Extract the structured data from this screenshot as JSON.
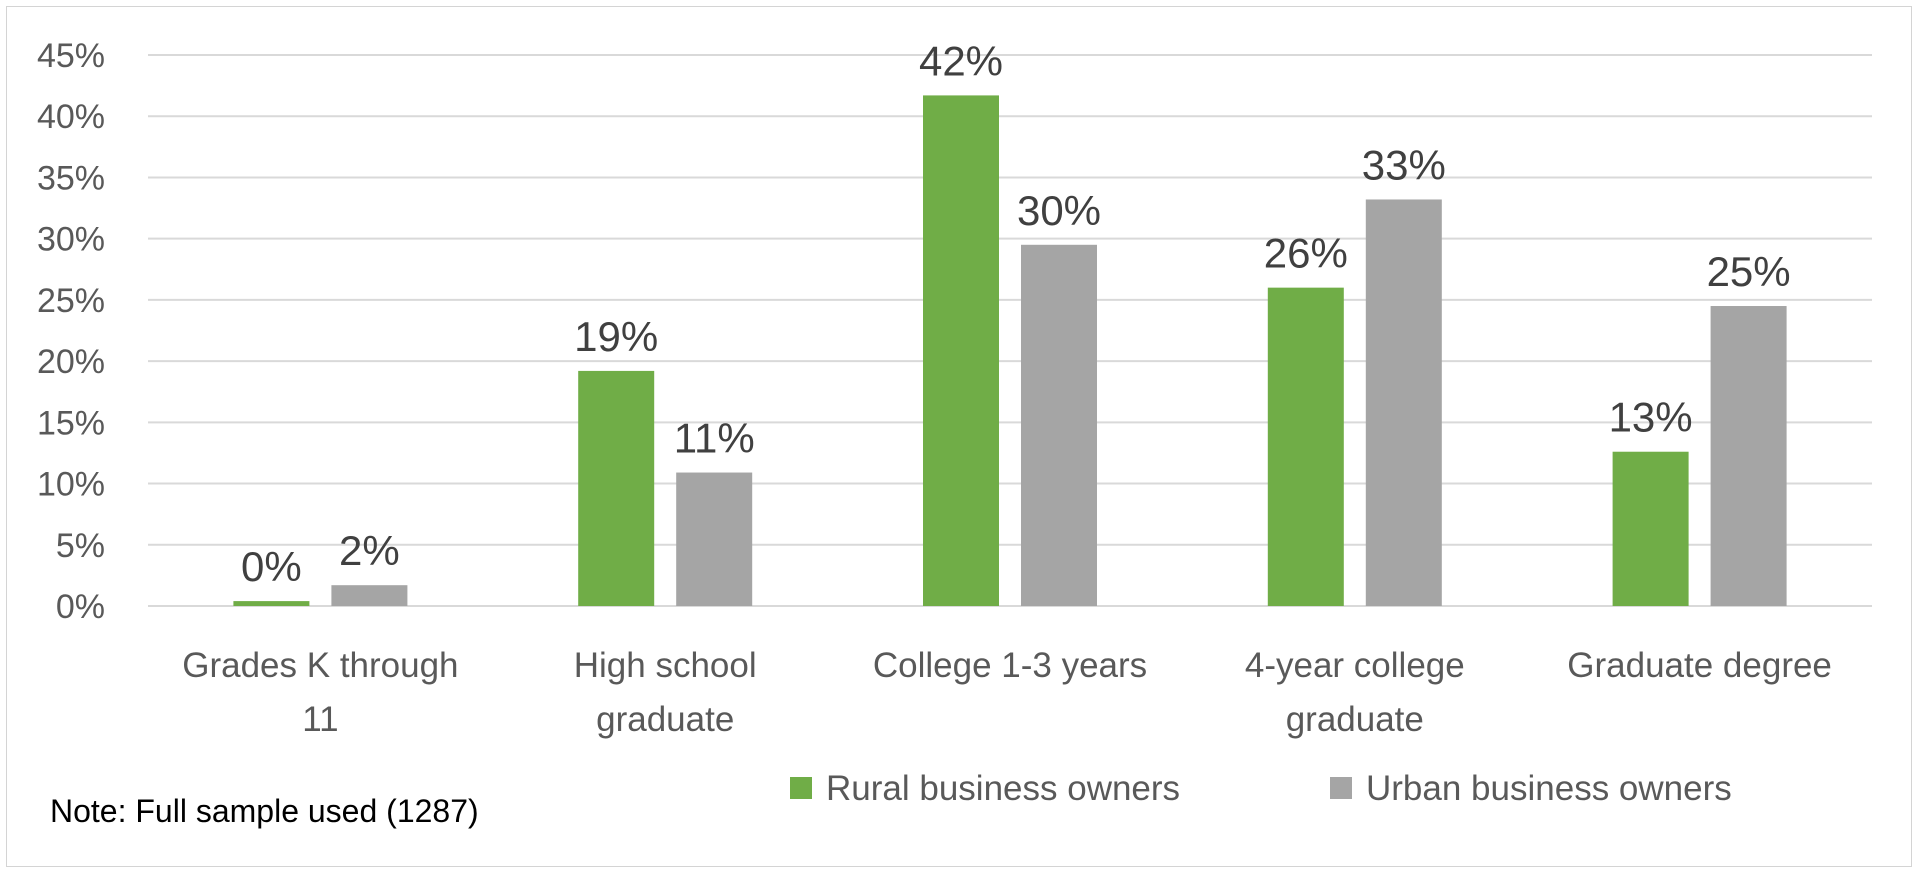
{
  "chart_data": {
    "type": "bar",
    "title": "",
    "xlabel": "",
    "ylabel": "",
    "ylim": [
      0,
      45
    ],
    "y_ticks": [
      "0%",
      "5%",
      "10%",
      "15%",
      "20%",
      "25%",
      "30%",
      "35%",
      "40%",
      "45%"
    ],
    "y_tick_values": [
      0,
      5,
      10,
      15,
      20,
      25,
      30,
      35,
      40,
      45
    ],
    "grid": true,
    "categories": [
      [
        "Grades K through",
        "11"
      ],
      [
        "High school",
        "graduate"
      ],
      [
        "College 1-3 years"
      ],
      [
        "4-year college",
        "graduate"
      ],
      [
        "Graduate degree"
      ]
    ],
    "series": [
      {
        "name": "Rural business owners",
        "color": "#70ad47",
        "values": [
          0.4,
          19.2,
          41.7,
          26.0,
          12.6
        ],
        "labels": [
          "0%",
          "19%",
          "42%",
          "26%",
          "13%"
        ]
      },
      {
        "name": "Urban business owners",
        "color": "#a5a5a5",
        "values": [
          1.7,
          10.9,
          29.5,
          33.2,
          24.5
        ],
        "labels": [
          "2%",
          "11%",
          "30%",
          "33%",
          "25%"
        ]
      }
    ],
    "legend_position": "bottom-right",
    "note": "Note: Full sample used (1287)"
  }
}
